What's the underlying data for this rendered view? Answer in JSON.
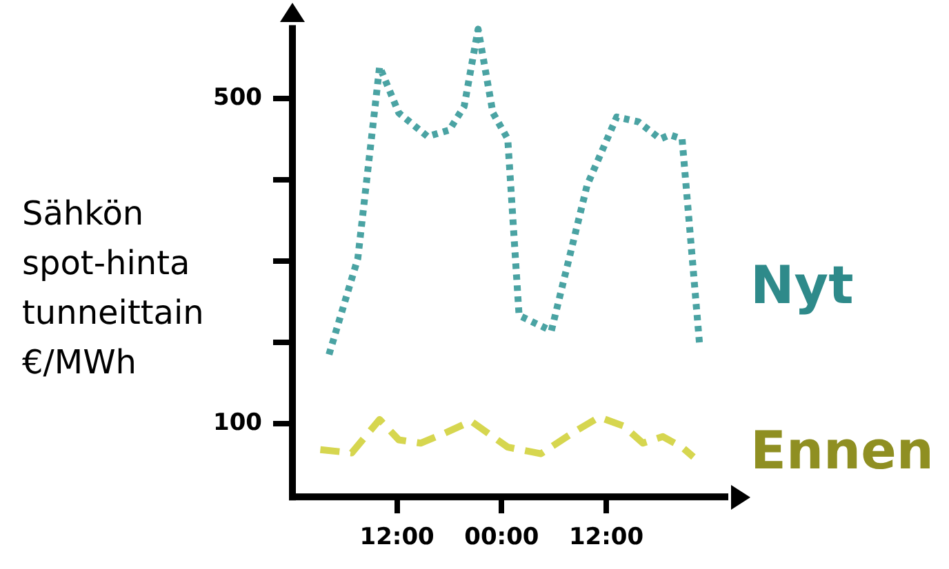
{
  "chart_data": {
    "type": "line",
    "ylabel": "Sähkön\nspot-hinta\ntunneittain\n€/MWh",
    "xlim": [
      "--01-01T00:00",
      "--01-03T02:00"
    ],
    "xticks": [
      {
        "value": "--01-01T12:00",
        "label": "12:00"
      },
      {
        "value": "--01-02T00:00",
        "label": "00:00"
      },
      {
        "value": "--01-02T12:00",
        "label": "12:00"
      }
    ],
    "ylim": [
      10,
      590
    ],
    "yticks": [
      {
        "value": 100,
        "label": "100"
      },
      {
        "value": 200,
        "label": null
      },
      {
        "value": 300,
        "label": null
      },
      {
        "value": 400,
        "label": null
      },
      {
        "value": 500,
        "label": "500"
      }
    ],
    "grid": false,
    "legend": false,
    "marker": "none",
    "series": [
      {
        "name": "Nyt",
        "color": "#4aa3a3",
        "line_style": "dotted",
        "x": [
          "--01-01T04:12",
          "--01-01T07:30",
          "--01-01T10:00",
          "--01-01T12:12",
          "--01-01T15:30",
          "--01-01T18:00",
          "--01-01T19:42",
          "--01-01T21:18",
          "--01-01T23:00",
          "--01-02T00:42",
          "--01-02T02:00",
          "--01-02T05:42",
          "--01-02T09:48",
          "--01-02T13:12",
          "--01-02T15:42",
          "--01-02T18:12",
          "--01-02T19:18",
          "--01-02T20:42",
          "--01-02T22:42"
        ],
        "values": [
          185,
          303,
          539,
          482,
          453,
          461,
          490,
          585,
          482,
          450,
          233,
          214,
          393,
          477,
          471,
          450,
          455,
          450,
          198
        ]
      },
      {
        "name": "Ennen",
        "color": "#d6d64f",
        "line_style": "dashed",
        "x": [
          "--01-01T03:12",
          "--01-01T06:48",
          "--01-01T10:00",
          "--01-01T12:12",
          "--01-01T14:42",
          "--01-01T17:12",
          "--01-01T20:30",
          "--01-02T00:42",
          "--01-02T04:30",
          "--01-02T08:12",
          "--01-02T11:12",
          "--01-02T14:00",
          "--01-02T16:12",
          "--01-02T18:30",
          "--01-02T20:42",
          "--01-02T22:00"
        ],
        "values": [
          68,
          64,
          105,
          80,
          76,
          87,
          103,
          71,
          63,
          89,
          108,
          97,
          76,
          84,
          71,
          59
        ]
      }
    ]
  }
}
